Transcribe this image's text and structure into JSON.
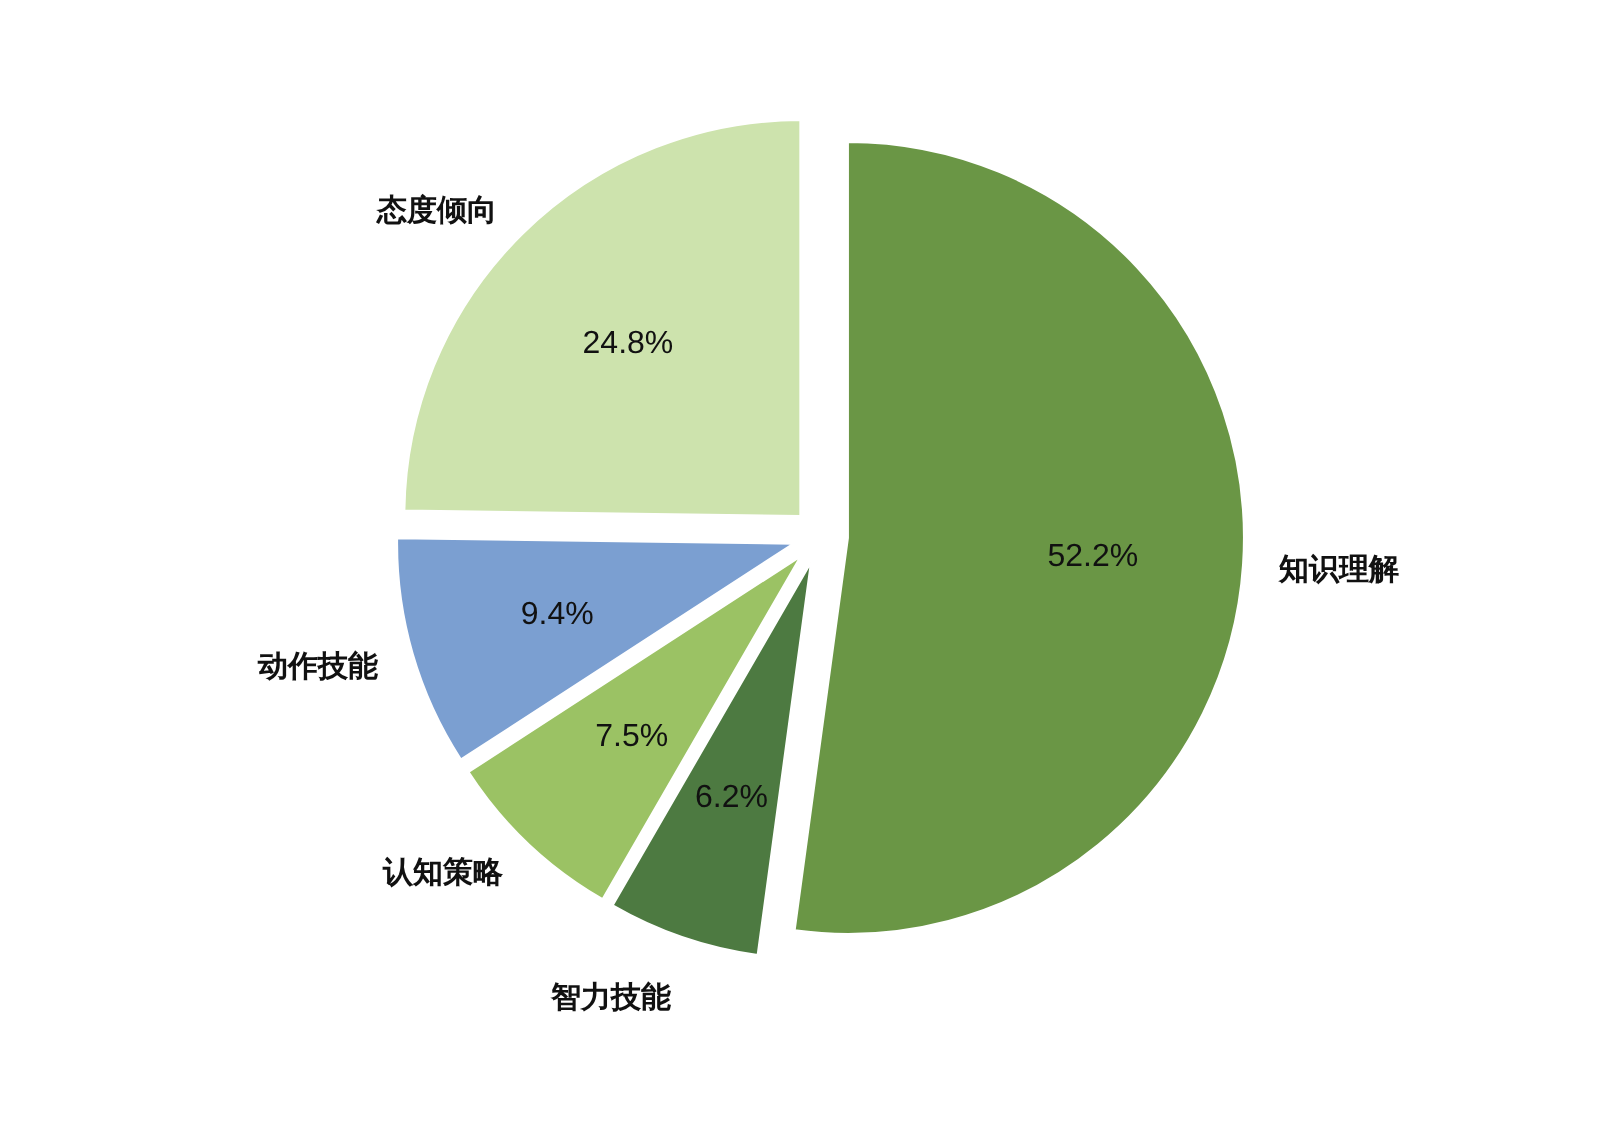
{
  "chart_data": {
    "type": "pie",
    "categories": [
      "知识理解",
      "智力技能",
      "认知策略",
      "动作技能",
      "态度倾向"
    ],
    "values": [
      52.2,
      6.2,
      7.5,
      9.4,
      24.8
    ],
    "colors": [
      "#6a9645",
      "#4d7a41",
      "#9bc264",
      "#7b9fd1",
      "#cde3ad"
    ],
    "value_labels": [
      "52.2%",
      "6.2%",
      "7.5%",
      "9.4%",
      "24.8%"
    ]
  }
}
